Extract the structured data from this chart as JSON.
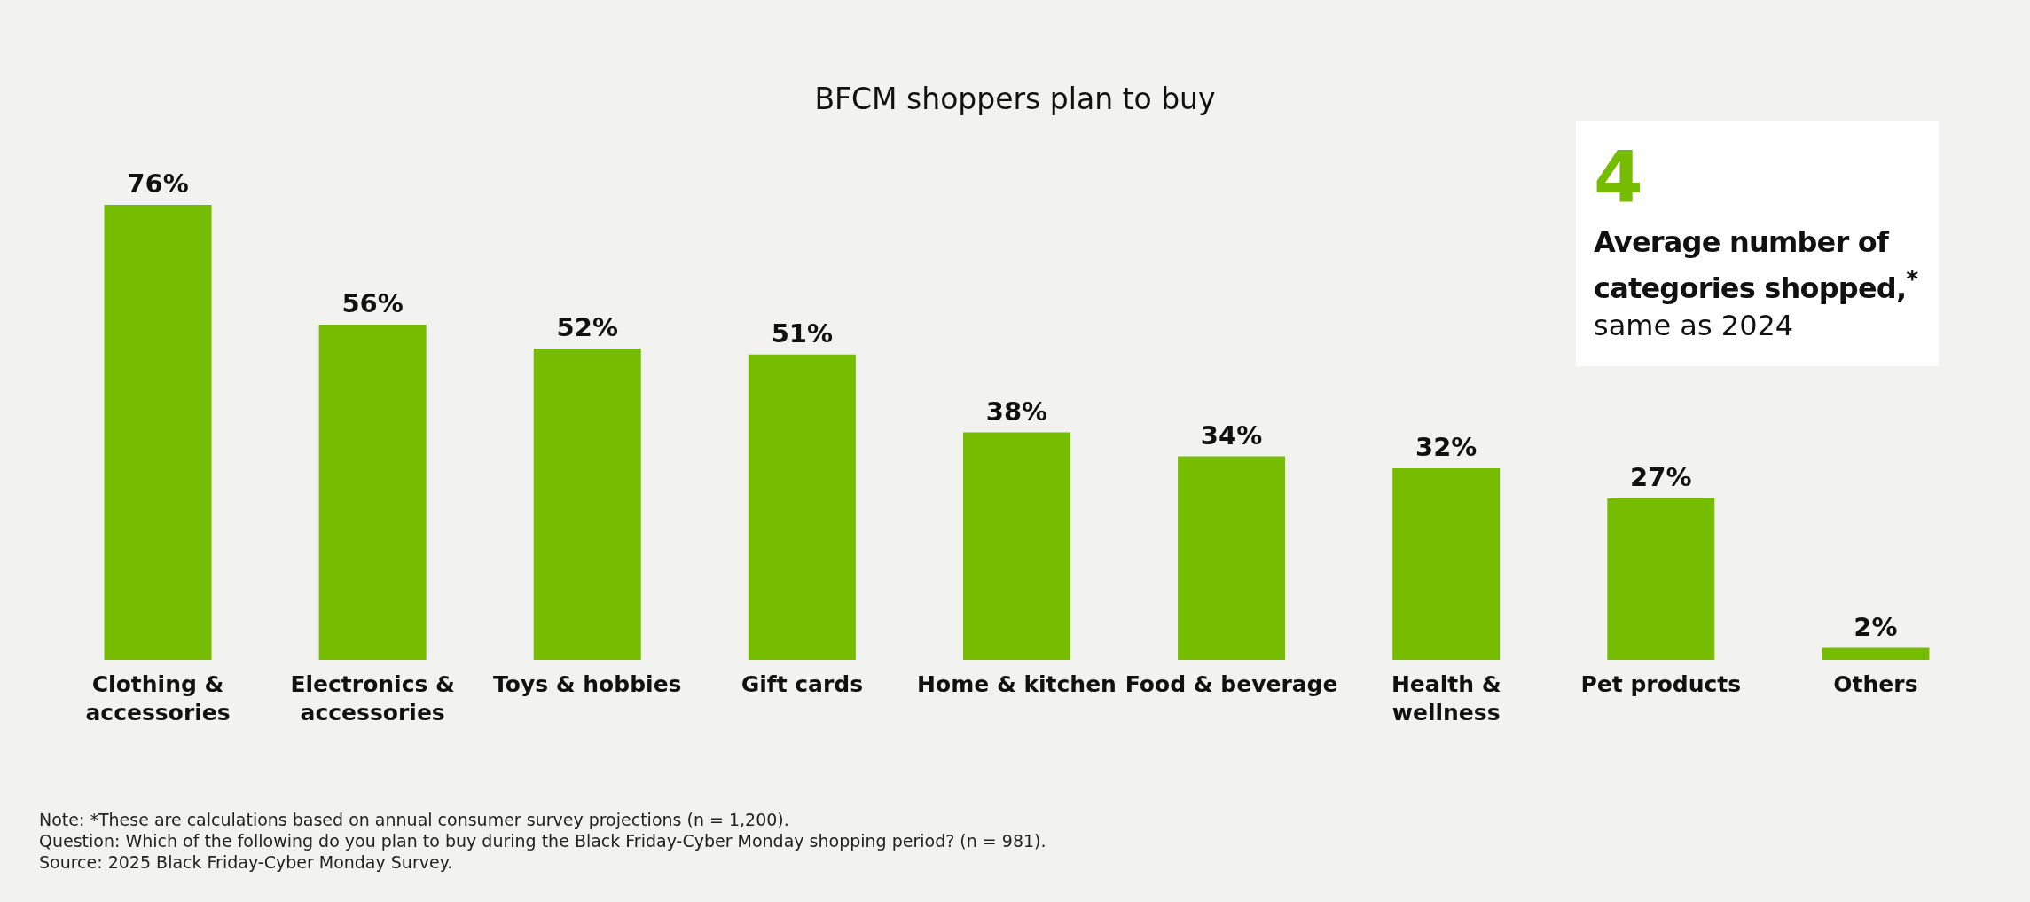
{
  "chart_data": {
    "type": "bar",
    "title": "BFCM shoppers plan to buy",
    "categories": [
      "Clothing & accessories",
      "Electronics & accessories",
      "Toys & hobbies",
      "Gift cards",
      "Home & kitchen",
      "Food & beverage",
      "Health & wellness",
      "Pet products",
      "Others"
    ],
    "values": [
      76,
      56,
      52,
      51,
      38,
      34,
      32,
      27,
      2
    ],
    "value_labels": [
      "76%",
      "56%",
      "52%",
      "51%",
      "38%",
      "34%",
      "32%",
      "27%",
      "2%"
    ],
    "color": "#76bc00",
    "grid": false,
    "legend": false,
    "annotations": [
      "4",
      "Average number of categories shopped,$^{*}$",
      "same as 2024",
      "Note: *These are calculations based on annual consumer survey projections (n = 1,200).",
      "Question: Which of the following do you plan to buy during the Black Friday-Cyber Monday shopping period? (n = 981).",
      "Source: 2025 Black Friday-Cyber Monday Survey."
    ]
  }
}
